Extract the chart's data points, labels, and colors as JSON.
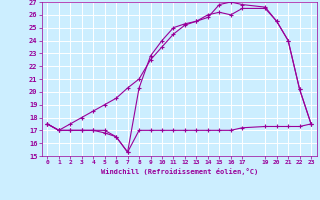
{
  "xlabel": "Windchill (Refroidissement éolien,°C)",
  "background_color": "#cceeff",
  "grid_color": "#ffffff",
  "line_color": "#990099",
  "xlim": [
    -0.5,
    23.5
  ],
  "ylim": [
    15,
    27
  ],
  "xticks": [
    0,
    1,
    2,
    3,
    4,
    5,
    6,
    7,
    8,
    9,
    10,
    11,
    12,
    13,
    14,
    15,
    16,
    17,
    19,
    20,
    21,
    22,
    23
  ],
  "yticks": [
    15,
    16,
    17,
    18,
    19,
    20,
    21,
    22,
    23,
    24,
    25,
    26,
    27
  ],
  "line1_x": [
    0,
    1,
    2,
    3,
    4,
    5,
    6,
    7,
    8,
    9,
    10,
    11,
    12,
    13,
    14,
    15,
    16,
    17,
    19,
    20,
    21,
    22,
    23
  ],
  "line1_y": [
    17.5,
    17.0,
    17.0,
    17.0,
    17.0,
    17.0,
    16.5,
    15.3,
    17.0,
    17.0,
    17.0,
    17.0,
    17.0,
    17.0,
    17.0,
    17.0,
    17.0,
    17.2,
    17.3,
    17.3,
    17.3,
    17.3,
    17.5
  ],
  "line2_x": [
    0,
    1,
    2,
    3,
    4,
    5,
    6,
    7,
    8,
    9,
    10,
    11,
    12,
    13,
    14,
    15,
    16,
    17,
    19,
    20,
    21,
    22,
    23
  ],
  "line2_y": [
    17.5,
    17.0,
    17.0,
    17.0,
    17.0,
    16.8,
    16.5,
    15.3,
    20.3,
    22.8,
    24.0,
    25.0,
    25.3,
    25.5,
    26.0,
    26.2,
    26.0,
    26.5,
    26.5,
    25.5,
    24.0,
    20.2,
    17.5
  ],
  "line3_x": [
    0,
    1,
    2,
    3,
    4,
    5,
    6,
    7,
    8,
    9,
    10,
    11,
    12,
    13,
    14,
    15,
    16,
    17,
    19,
    20,
    21,
    22,
    23
  ],
  "line3_y": [
    17.5,
    17.0,
    17.5,
    18.0,
    18.5,
    19.0,
    19.5,
    20.3,
    21.0,
    22.5,
    23.5,
    24.5,
    25.2,
    25.5,
    25.8,
    26.8,
    27.0,
    26.8,
    26.6,
    25.5,
    24.0,
    20.2,
    17.5
  ]
}
